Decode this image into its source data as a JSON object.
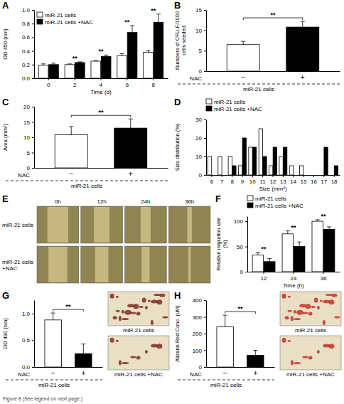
{
  "chart_data": [
    {
      "panel": "A",
      "type": "bar",
      "x_label": "Time (d)",
      "y_label": "OD 450 (nm)",
      "categories": [
        "0",
        "2",
        "4",
        "6",
        "8"
      ],
      "series": [
        {
          "name": "miR-21 cells",
          "color": "#ffffff",
          "values": [
            0.19,
            0.2,
            0.25,
            0.33,
            0.38
          ],
          "errors": [
            0.02,
            0.01,
            0.01,
            0.03,
            0.03
          ]
        },
        {
          "name": "miR-21 cells +NAC",
          "color": "#000000",
          "values": [
            0.2,
            0.23,
            0.32,
            0.67,
            0.82
          ],
          "errors": [
            0.02,
            0.01,
            0.02,
            0.1,
            0.12
          ]
        }
      ],
      "significance": [
        null,
        "**",
        "**",
        "**",
        "**"
      ],
      "ylim": [
        0,
        1
      ],
      "yticks": [
        {
          "value": 0,
          "label": "0.0"
        },
        0.2,
        0.4,
        0.6,
        0.8,
        {
          "value": 1,
          "label": "1.0"
        }
      ],
      "legend": "top-left"
    },
    {
      "panel": "B",
      "type": "bar",
      "y_label": "Numbers of CFU-F/1000 cells seeded",
      "x_label": "NAC",
      "group_label": "miR-21 cells",
      "categories": [
        "−",
        "+"
      ],
      "values": [
        6.5,
        10.8
      ],
      "errors": [
        0.8,
        1.4
      ],
      "colors": [
        "#ffffff",
        "#000000"
      ],
      "significance": "**",
      "ylim": [
        0,
        15
      ],
      "yticks": [
        0,
        5,
        10,
        15
      ]
    },
    {
      "panel": "C",
      "type": "bar",
      "y_label": "Area (mm²)",
      "x_label": "NAC",
      "group_label": "miR-21 cells",
      "categories": [
        "−",
        "+"
      ],
      "values": [
        10.8,
        13
      ],
      "errors": [
        2.7,
        3
      ],
      "colors": [
        "#ffffff",
        "#000000"
      ],
      "significance": "**",
      "ylim": [
        0,
        20
      ],
      "yticks": [
        0,
        5,
        10,
        15,
        20
      ]
    },
    {
      "panel": "D",
      "type": "bar",
      "x_label": "Size (mm²)",
      "y_label": "Size distribution (%)",
      "categories": [
        "6",
        "7",
        "8",
        "9",
        "10",
        "11",
        "12",
        "13",
        "14",
        "15",
        "16",
        "17",
        "18"
      ],
      "series": [
        {
          "name": "miR-21 cells",
          "color": "#ffffff",
          "values": [
            10,
            10,
            10,
            5,
            15,
            25,
            5,
            10,
            5,
            5,
            0,
            0,
            0
          ]
        },
        {
          "name": "miR-21 cells +NAC",
          "color": "#000000",
          "values": [
            0,
            0,
            5,
            20,
            15,
            10,
            15,
            15,
            0,
            0,
            0,
            15,
            5
          ]
        }
      ],
      "ylim": [
        0,
        30
      ],
      "yticks": [
        0,
        10,
        20,
        30
      ],
      "legend": "top"
    },
    {
      "panel": "F",
      "type": "bar",
      "x_label": "Time (h)",
      "y_label": "Relative migration rate (%)",
      "categories": [
        "12",
        "24",
        "36"
      ],
      "series": [
        {
          "name": "miR-21 cells",
          "color": "#ffffff",
          "values": [
            33,
            75,
            100
          ],
          "errors": [
            5,
            6,
            3
          ]
        },
        {
          "name": "miR-21 cells +NAC",
          "color": "#000000",
          "values": [
            20,
            50,
            84
          ],
          "errors": [
            6,
            9,
            5
          ]
        }
      ],
      "significance": [
        "**",
        "**",
        "**"
      ],
      "ylim": [
        0,
        110
      ],
      "yticks": [
        0,
        50,
        100
      ],
      "legend": "top"
    },
    {
      "panel": "G",
      "type": "bar",
      "y_label": "OD 490 (nm)",
      "x_label": "NAC",
      "group_label": "miR-21 cells",
      "categories": [
        "−",
        "+"
      ],
      "values": [
        0.88,
        0.25
      ],
      "errors": [
        0.13,
        0.18
      ],
      "colors": [
        "#ffffff",
        "#000000"
      ],
      "significance": "**",
      "ylim": [
        0,
        1.25
      ],
      "yticks": [
        {
          "value": 0,
          "label": "0.0"
        },
        0.5,
        {
          "value": 1,
          "label": "1.0"
        }
      ],
      "photo_labels": [
        "miR-21 cells",
        "miR-21 cells +NAC"
      ]
    },
    {
      "panel": "H",
      "type": "bar",
      "y_label": "Alizarin Red Conc. (uM)",
      "x_label": "NAC",
      "group_label": "miR-21 cells",
      "categories": [
        "−",
        "+"
      ],
      "values": [
        240,
        70
      ],
      "errors": [
        70,
        30
      ],
      "colors": [
        "#ffffff",
        "#000000"
      ],
      "significance": "**",
      "ylim": [
        0,
        400
      ],
      "yticks": [
        0,
        100,
        200,
        300,
        400
      ],
      "photo_labels": [
        "miR-21 cells",
        "miR-21 cells +NAC"
      ]
    }
  ],
  "figure": {
    "caption": "Figure 8 (See legend on next page.)",
    "panel_e": {
      "panel": "E",
      "columns": [
        "0h",
        "12h",
        "24h",
        "36h"
      ],
      "rows": [
        "miR-21 cells",
        "miR-21 cells +NAC"
      ]
    }
  }
}
